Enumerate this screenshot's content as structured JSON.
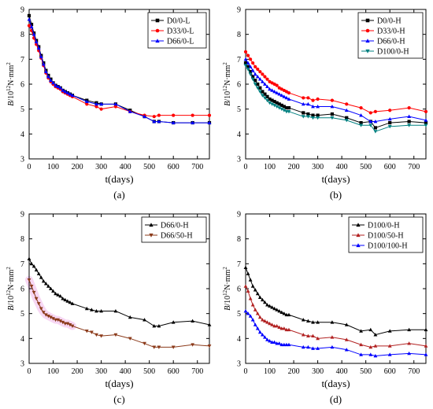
{
  "chart_data": [
    {
      "panel_label": "(a)",
      "type": "line",
      "xlabel": "t(days)",
      "ylabel_main": "B",
      "ylabel_unit": "/10",
      "ylabel_exp": "12",
      "ylabel_tail": "N·mm",
      "ylabel_tail_exp": "2",
      "xlim": [
        0,
        750
      ],
      "ylim": [
        3,
        9
      ],
      "xticks": [
        0,
        100,
        200,
        300,
        400,
        500,
        600,
        700
      ],
      "yticks": [
        3,
        4,
        5,
        6,
        7,
        8,
        9
      ],
      "legend_position": "top-right",
      "series": [
        {
          "name": "D0/0-L",
          "color": "#000000",
          "marker": "square",
          "x": [
            0,
            10,
            20,
            30,
            40,
            50,
            60,
            70,
            80,
            90,
            100,
            110,
            120,
            130,
            140,
            150,
            160,
            170,
            180,
            240,
            280,
            300,
            360,
            420,
            480,
            520,
            540,
            600,
            680,
            750
          ],
          "y": [
            8.75,
            8.4,
            8.05,
            7.75,
            7.5,
            7.15,
            6.85,
            6.55,
            6.35,
            6.2,
            6.05,
            5.95,
            5.9,
            5.85,
            5.75,
            5.7,
            5.65,
            5.6,
            5.55,
            5.35,
            5.25,
            5.2,
            5.2,
            4.95,
            4.7,
            4.5,
            4.5,
            4.45,
            4.45,
            4.45
          ]
        },
        {
          "name": "D33/0-L",
          "color": "#ff0000",
          "marker": "circle",
          "x": [
            0,
            10,
            20,
            30,
            40,
            50,
            60,
            70,
            80,
            90,
            100,
            110,
            120,
            130,
            140,
            150,
            160,
            170,
            180,
            240,
            280,
            300,
            360,
            420,
            480,
            520,
            540,
            600,
            680,
            750
          ],
          "y": [
            8.35,
            8.15,
            7.85,
            7.6,
            7.35,
            7.05,
            6.75,
            6.45,
            6.25,
            6.1,
            6.0,
            5.9,
            5.85,
            5.8,
            5.7,
            5.65,
            5.6,
            5.55,
            5.5,
            5.2,
            5.1,
            5.0,
            5.1,
            4.9,
            4.75,
            4.7,
            4.75,
            4.75,
            4.75,
            4.75
          ]
        },
        {
          "name": "D66/0-L",
          "color": "#0000ff",
          "marker": "triangle",
          "x": [
            0,
            10,
            20,
            30,
            40,
            50,
            60,
            70,
            80,
            90,
            100,
            110,
            120,
            130,
            140,
            150,
            160,
            170,
            180,
            240,
            280,
            300,
            360,
            420,
            480,
            520,
            540,
            600,
            680,
            750
          ],
          "y": [
            8.6,
            8.3,
            8.0,
            7.7,
            7.45,
            7.1,
            6.8,
            6.5,
            6.3,
            6.15,
            6.05,
            5.95,
            5.9,
            5.85,
            5.75,
            5.7,
            5.65,
            5.6,
            5.55,
            5.3,
            5.2,
            5.2,
            5.2,
            4.9,
            4.7,
            4.5,
            4.5,
            4.45,
            4.45,
            4.45
          ]
        }
      ]
    },
    {
      "panel_label": "(b)",
      "type": "line",
      "xlabel": "t(days)",
      "ylabel_main": "B",
      "ylabel_unit": "/10",
      "ylabel_exp": "12",
      "ylabel_tail": "N·mm",
      "ylabel_tail_exp": "2",
      "xlim": [
        0,
        750
      ],
      "ylim": [
        3,
        9
      ],
      "xticks": [
        0,
        100,
        200,
        300,
        400,
        500,
        600,
        700
      ],
      "yticks": [
        3,
        4,
        5,
        6,
        7,
        8,
        9
      ],
      "legend_position": "top-right",
      "series": [
        {
          "name": "D0/0-H",
          "color": "#000000",
          "marker": "square",
          "x": [
            0,
            10,
            20,
            30,
            40,
            50,
            60,
            70,
            80,
            90,
            100,
            110,
            120,
            130,
            140,
            150,
            160,
            170,
            180,
            240,
            260,
            280,
            300,
            360,
            420,
            480,
            520,
            540,
            600,
            680,
            750
          ],
          "y": [
            6.85,
            6.7,
            6.5,
            6.3,
            6.15,
            6.0,
            5.85,
            5.7,
            5.6,
            5.5,
            5.4,
            5.35,
            5.3,
            5.25,
            5.2,
            5.15,
            5.1,
            5.05,
            5.05,
            4.85,
            4.8,
            4.75,
            4.75,
            4.8,
            4.65,
            4.45,
            4.5,
            4.25,
            4.45,
            4.5,
            4.45
          ]
        },
        {
          "name": "D33/0-H",
          "color": "#ff0000",
          "marker": "circle",
          "x": [
            0,
            10,
            20,
            30,
            40,
            50,
            60,
            70,
            80,
            90,
            100,
            110,
            120,
            130,
            140,
            150,
            160,
            170,
            180,
            240,
            260,
            280,
            300,
            360,
            420,
            480,
            520,
            540,
            600,
            680,
            750
          ],
          "y": [
            7.3,
            7.15,
            7.0,
            6.85,
            6.7,
            6.6,
            6.5,
            6.4,
            6.3,
            6.2,
            6.1,
            6.05,
            6.0,
            5.95,
            5.85,
            5.8,
            5.75,
            5.7,
            5.65,
            5.45,
            5.45,
            5.35,
            5.4,
            5.35,
            5.2,
            5.05,
            4.85,
            4.9,
            4.95,
            5.05,
            4.9
          ]
        },
        {
          "name": "D66/0-H",
          "color": "#0000ff",
          "marker": "triangle",
          "x": [
            0,
            10,
            20,
            30,
            40,
            50,
            60,
            70,
            80,
            90,
            100,
            110,
            120,
            130,
            140,
            150,
            160,
            170,
            180,
            240,
            260,
            280,
            300,
            360,
            420,
            480,
            520,
            540,
            600,
            680,
            750
          ],
          "y": [
            7.0,
            6.85,
            6.7,
            6.55,
            6.4,
            6.3,
            6.2,
            6.1,
            6.0,
            5.9,
            5.8,
            5.75,
            5.7,
            5.65,
            5.6,
            5.55,
            5.5,
            5.45,
            5.4,
            5.2,
            5.2,
            5.1,
            5.1,
            5.1,
            4.95,
            4.75,
            4.5,
            4.5,
            4.6,
            4.7,
            4.55
          ]
        },
        {
          "name": "D100/0-H",
          "color": "#008080",
          "marker": "triangle-down",
          "x": [
            0,
            10,
            20,
            30,
            40,
            50,
            60,
            70,
            80,
            90,
            100,
            110,
            120,
            130,
            140,
            150,
            160,
            170,
            180,
            240,
            260,
            280,
            300,
            360,
            420,
            480,
            520,
            540,
            600,
            680,
            750
          ],
          "y": [
            6.75,
            6.6,
            6.4,
            6.2,
            6.0,
            5.85,
            5.7,
            5.55,
            5.45,
            5.35,
            5.25,
            5.2,
            5.15,
            5.1,
            5.05,
            5.0,
            4.95,
            4.9,
            4.9,
            4.7,
            4.7,
            4.65,
            4.65,
            4.65,
            4.55,
            4.35,
            4.35,
            4.1,
            4.3,
            4.35,
            4.35
          ]
        }
      ]
    },
    {
      "panel_label": "(c)",
      "type": "line",
      "xlabel": "t(days)",
      "ylabel_main": "B",
      "ylabel_unit": "/10",
      "ylabel_exp": "12",
      "ylabel_tail": "N·mm",
      "ylabel_tail_exp": "2",
      "xlim": [
        0,
        750
      ],
      "ylim": [
        3,
        9
      ],
      "xticks": [
        0,
        100,
        200,
        300,
        400,
        500,
        600,
        700
      ],
      "yticks": [
        3,
        4,
        5,
        6,
        7,
        8,
        9
      ],
      "legend_position": "top-right",
      "series": [
        {
          "name": "D66/0-H",
          "color": "#000000",
          "marker": "triangle",
          "x": [
            0,
            10,
            20,
            30,
            40,
            50,
            60,
            70,
            80,
            90,
            100,
            110,
            120,
            130,
            140,
            150,
            160,
            170,
            180,
            240,
            260,
            280,
            300,
            360,
            420,
            480,
            520,
            540,
            600,
            680,
            750
          ],
          "y": [
            7.2,
            7.0,
            6.9,
            6.75,
            6.6,
            6.45,
            6.3,
            6.2,
            6.1,
            6.0,
            5.9,
            5.8,
            5.75,
            5.7,
            5.6,
            5.55,
            5.5,
            5.45,
            5.4,
            5.2,
            5.15,
            5.1,
            5.1,
            5.1,
            4.85,
            4.75,
            4.5,
            4.5,
            4.65,
            4.7,
            4.55
          ]
        },
        {
          "name": "D66/50-H",
          "color": "#8b3a1a",
          "marker": "triangle-down",
          "x": [
            0,
            10,
            20,
            30,
            40,
            50,
            60,
            70,
            80,
            90,
            100,
            110,
            120,
            130,
            140,
            150,
            160,
            170,
            180,
            240,
            260,
            280,
            300,
            360,
            420,
            480,
            520,
            540,
            600,
            680,
            750
          ],
          "y": [
            6.35,
            6.1,
            5.85,
            5.6,
            5.4,
            5.2,
            5.05,
            4.95,
            4.9,
            4.85,
            4.8,
            4.75,
            4.75,
            4.7,
            4.65,
            4.6,
            4.6,
            4.55,
            4.5,
            4.3,
            4.25,
            4.15,
            4.1,
            4.15,
            4.0,
            3.8,
            3.65,
            3.65,
            3.65,
            3.75,
            3.7
          ]
        }
      ]
    },
    {
      "panel_label": "(d)",
      "type": "line",
      "xlabel": "t(days)",
      "ylabel_main": "B",
      "ylabel_unit": "/10",
      "ylabel_exp": "12",
      "ylabel_tail": "N·mm",
      "ylabel_tail_exp": "2",
      "xlim": [
        0,
        750
      ],
      "ylim": [
        3,
        9
      ],
      "xticks": [
        0,
        100,
        200,
        300,
        400,
        500,
        600,
        700
      ],
      "yticks": [
        3,
        4,
        5,
        6,
        7,
        8,
        9
      ],
      "legend_position": "top-right",
      "series": [
        {
          "name": "D100/0-H",
          "color": "#000000",
          "marker": "triangle",
          "x": [
            0,
            10,
            20,
            30,
            40,
            50,
            60,
            70,
            80,
            90,
            100,
            110,
            120,
            130,
            140,
            150,
            160,
            170,
            180,
            240,
            260,
            280,
            300,
            360,
            420,
            480,
            520,
            540,
            600,
            680,
            750
          ],
          "y": [
            6.85,
            6.6,
            6.35,
            6.1,
            5.95,
            5.8,
            5.65,
            5.55,
            5.45,
            5.35,
            5.3,
            5.25,
            5.2,
            5.15,
            5.1,
            5.05,
            5.0,
            4.95,
            4.95,
            4.75,
            4.7,
            4.65,
            4.65,
            4.65,
            4.55,
            4.3,
            4.35,
            4.15,
            4.3,
            4.35,
            4.35
          ]
        },
        {
          "name": "D100/50-H",
          "color": "#b22222",
          "marker": "triangle",
          "x": [
            0,
            10,
            20,
            30,
            40,
            50,
            60,
            70,
            80,
            90,
            100,
            110,
            120,
            130,
            140,
            150,
            160,
            170,
            180,
            240,
            260,
            280,
            300,
            360,
            420,
            480,
            520,
            540,
            600,
            680,
            750
          ],
          "y": [
            6.1,
            5.9,
            5.6,
            5.35,
            5.15,
            5.0,
            4.85,
            4.75,
            4.7,
            4.65,
            4.6,
            4.55,
            4.5,
            4.5,
            4.45,
            4.4,
            4.4,
            4.35,
            4.35,
            4.15,
            4.1,
            4.1,
            4.0,
            4.05,
            3.95,
            3.75,
            3.65,
            3.7,
            3.7,
            3.8,
            3.7
          ]
        },
        {
          "name": "D100/100-H",
          "color": "#0000ff",
          "marker": "triangle",
          "x": [
            0,
            10,
            20,
            30,
            40,
            50,
            60,
            70,
            80,
            90,
            100,
            110,
            120,
            130,
            140,
            150,
            160,
            170,
            180,
            240,
            260,
            280,
            300,
            360,
            420,
            480,
            520,
            540,
            600,
            680,
            750
          ],
          "y": [
            5.1,
            5.0,
            4.9,
            4.75,
            4.55,
            4.4,
            4.25,
            4.15,
            4.05,
            3.95,
            3.9,
            3.85,
            3.85,
            3.8,
            3.8,
            3.75,
            3.75,
            3.75,
            3.75,
            3.65,
            3.65,
            3.6,
            3.6,
            3.65,
            3.55,
            3.35,
            3.35,
            3.3,
            3.35,
            3.4,
            3.35
          ]
        }
      ]
    }
  ]
}
